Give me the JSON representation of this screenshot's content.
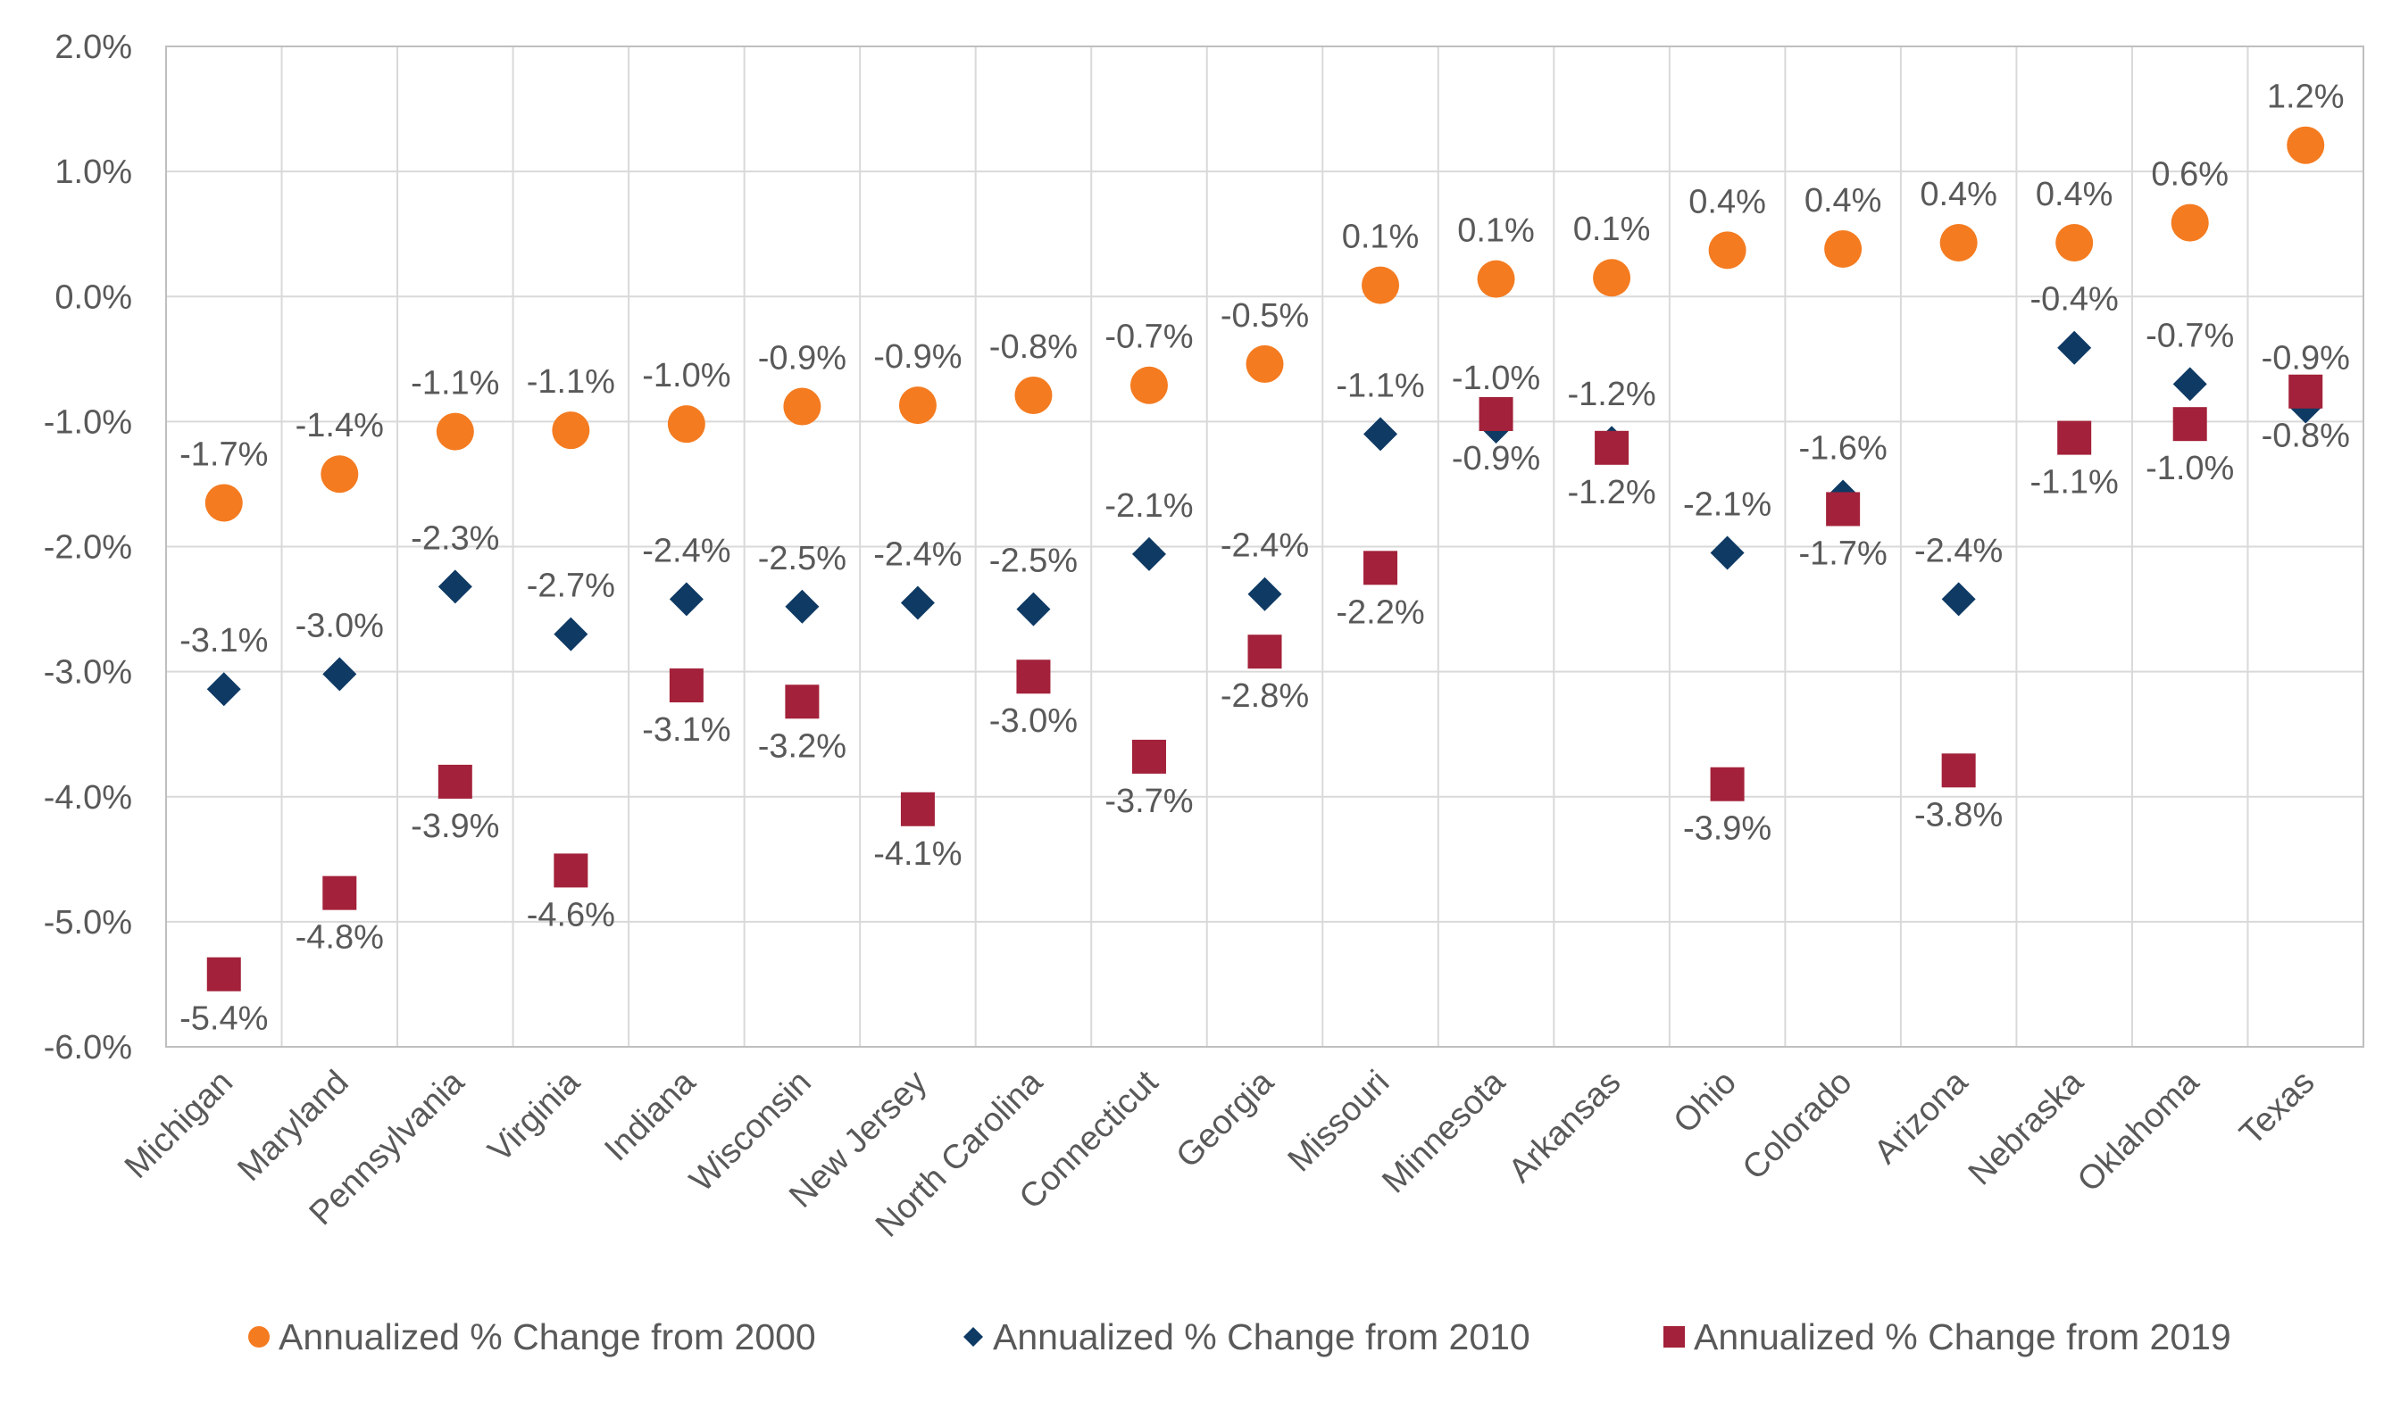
{
  "chart_data": {
    "type": "scatter",
    "categories": [
      "Michigan",
      "Maryland",
      "Pennsylvania",
      "Virginia",
      "Indiana",
      "Wisconsin",
      "New Jersey",
      "North Carolina",
      "Connecticut",
      "Georgia",
      "Missouri",
      "Minnesota",
      "Arkansas",
      "Ohio",
      "Colorado",
      "Arizona",
      "Nebraska",
      "Oklahoma",
      "Texas"
    ],
    "series": [
      {
        "name": "Annualized % Change from 2000",
        "marker": "circle",
        "color": "#F47B20",
        "values": [
          -1.65,
          -1.42,
          -1.08,
          -1.07,
          -1.02,
          -0.88,
          -0.87,
          -0.79,
          -0.71,
          -0.54,
          0.09,
          0.14,
          0.15,
          0.37,
          0.38,
          0.43,
          0.43,
          0.59,
          1.21
        ],
        "labels": [
          "-1.7%",
          "-1.4%",
          "-1.1%",
          "-1.1%",
          "-1.0%",
          "-0.9%",
          "-0.9%",
          "-0.8%",
          "-0.7%",
          "-0.5%",
          "0.1%",
          "0.1%",
          "0.1%",
          "0.4%",
          "0.4%",
          "0.4%",
          "0.4%",
          "0.6%",
          "1.2%"
        ]
      },
      {
        "name": "Annualized % Change from 2010",
        "marker": "diamond",
        "color": "#0E3A64",
        "values": [
          -3.14,
          -3.02,
          -2.32,
          -2.7,
          -2.42,
          -2.48,
          -2.45,
          -2.5,
          -2.06,
          -2.38,
          -1.1,
          -1.04,
          -1.17,
          -2.05,
          -1.6,
          -2.42,
          -0.41,
          -0.7,
          -0.88
        ],
        "labels": [
          "-3.1%",
          "-3.0%",
          "-2.3%",
          "-2.7%",
          "-2.4%",
          "-2.5%",
          "-2.4%",
          "-2.5%",
          "-2.1%",
          "-2.4%",
          "-1.1%",
          "-1.0%",
          "-1.2%",
          "-2.1%",
          "-1.6%",
          "-2.4%",
          "-0.4%",
          "-0.7%",
          "-0.9%"
        ]
      },
      {
        "name": "Annualized % Change from 2019",
        "marker": "square",
        "color": "#A3213A",
        "values": [
          -5.42,
          -4.77,
          -3.88,
          -4.59,
          -3.11,
          -3.24,
          -4.1,
          -3.04,
          -3.68,
          -2.84,
          -2.17,
          -0.94,
          -1.21,
          -3.9,
          -1.7,
          -3.79,
          -1.13,
          -1.02,
          -0.76
        ],
        "labels": [
          "-5.4%",
          "-4.8%",
          "-3.9%",
          "-4.6%",
          "-3.1%",
          "-3.2%",
          "-4.1%",
          "-3.0%",
          "-3.7%",
          "-2.8%",
          "-2.2%",
          "-0.9%",
          "-1.2%",
          "-3.9%",
          "-1.7%",
          "-3.8%",
          "-1.1%",
          "-1.0%",
          "-0.8%"
        ]
      }
    ],
    "y_ticks": [
      "2.0%",
      "1.0%",
      "0.0%",
      "-1.0%",
      "-2.0%",
      "-3.0%",
      "-4.0%",
      "-5.0%",
      "-6.0%"
    ],
    "ylim": [
      -6.0,
      2.0
    ],
    "grid": true,
    "legend": "bottom",
    "title": "",
    "xlabel": "",
    "ylabel": ""
  }
}
